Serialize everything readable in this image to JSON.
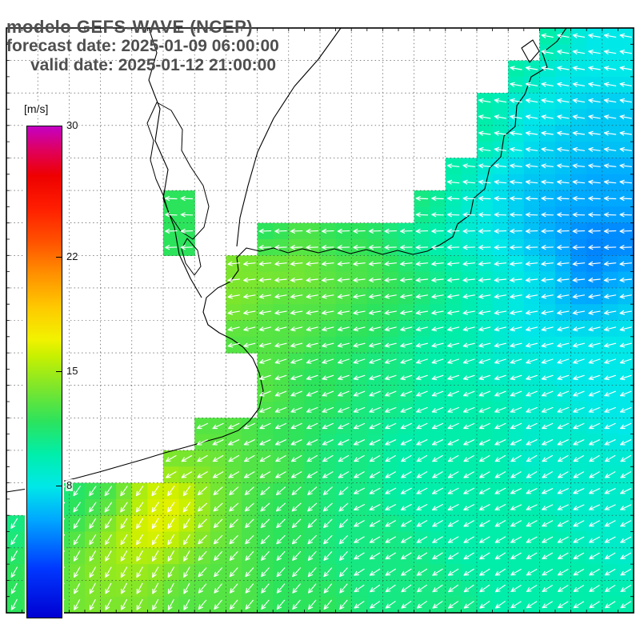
{
  "header": {
    "line1": "modelo GEFS-WAVE (NCEP)",
    "line2": "forecast date: 2025-01-09 06:00:00",
    "line3": "valid date: 2025-01-12 21:00:00"
  },
  "colorbar": {
    "unit_label": "[m/s]",
    "min": 0,
    "max": 30,
    "tick_labels": [
      30,
      22,
      15,
      8
    ],
    "stops": [
      {
        "v": 0,
        "color": "#0000d2"
      },
      {
        "v": 3,
        "color": "#0038ff"
      },
      {
        "v": 6,
        "color": "#00a8ff"
      },
      {
        "v": 8,
        "color": "#00e8e8"
      },
      {
        "v": 10,
        "color": "#00eeaa"
      },
      {
        "v": 12,
        "color": "#2ce35c"
      },
      {
        "v": 14,
        "color": "#7ce62c"
      },
      {
        "v": 16,
        "color": "#c8f000"
      },
      {
        "v": 17,
        "color": "#f2f200"
      },
      {
        "v": 19,
        "color": "#ffc800"
      },
      {
        "v": 21,
        "color": "#ff9000"
      },
      {
        "v": 23,
        "color": "#ff5000"
      },
      {
        "v": 25,
        "color": "#ff1e00"
      },
      {
        "v": 27,
        "color": "#ee0000"
      },
      {
        "v": 28.5,
        "color": "#e0005a"
      },
      {
        "v": 30,
        "color": "#c400c4"
      }
    ]
  },
  "chart_data": {
    "type": "heatmap",
    "title": "modelo GEFS-WAVE (NCEP)",
    "subtitle": [
      "forecast date: 2025-01-09 06:00:00",
      "valid date: 2025-01-12 21:00:00"
    ],
    "units": "m/s",
    "scale_range": [
      0,
      30
    ],
    "legend_position": "left",
    "grid_cols": 20,
    "grid_rows": 18,
    "values": [
      [
        null,
        null,
        null,
        null,
        null,
        null,
        null,
        null,
        null,
        null,
        null,
        null,
        null,
        null,
        null,
        null,
        null,
        10,
        8,
        8
      ],
      [
        null,
        null,
        null,
        null,
        null,
        null,
        null,
        null,
        null,
        null,
        null,
        null,
        null,
        null,
        null,
        null,
        10,
        8,
        8,
        8
      ],
      [
        null,
        null,
        null,
        null,
        null,
        null,
        null,
        null,
        null,
        null,
        null,
        null,
        null,
        null,
        null,
        10,
        8,
        8,
        7,
        7
      ],
      [
        null,
        null,
        null,
        null,
        null,
        null,
        null,
        null,
        null,
        null,
        null,
        null,
        null,
        null,
        null,
        10,
        8,
        7,
        7,
        7
      ],
      [
        null,
        null,
        null,
        null,
        null,
        null,
        null,
        null,
        null,
        null,
        null,
        null,
        null,
        null,
        10,
        8,
        7,
        7,
        6,
        6
      ],
      [
        null,
        null,
        null,
        null,
        null,
        12,
        null,
        null,
        null,
        null,
        null,
        null,
        null,
        11,
        9,
        8,
        7,
        6,
        6,
        6
      ],
      [
        null,
        null,
        null,
        null,
        null,
        12,
        null,
        null,
        12,
        13,
        12,
        12,
        11,
        10,
        9,
        8,
        7,
        6,
        5,
        5
      ],
      [
        null,
        null,
        null,
        null,
        null,
        null,
        null,
        14,
        14,
        14,
        13,
        13,
        12,
        11,
        10,
        9,
        8,
        7,
        5,
        6
      ],
      [
        null,
        null,
        null,
        null,
        null,
        null,
        null,
        14,
        13,
        13,
        13,
        12,
        12,
        11,
        10,
        9,
        8,
        7,
        6,
        7
      ],
      [
        null,
        null,
        null,
        null,
        null,
        null,
        null,
        13,
        13,
        13,
        12,
        12,
        11,
        10,
        10,
        9,
        8,
        8,
        8,
        8
      ],
      [
        null,
        null,
        null,
        null,
        null,
        null,
        null,
        null,
        13,
        12,
        12,
        11,
        11,
        10,
        10,
        9,
        9,
        8,
        8,
        8
      ],
      [
        null,
        null,
        null,
        null,
        null,
        null,
        null,
        null,
        13,
        12,
        12,
        11,
        11,
        10,
        10,
        10,
        9,
        9,
        8,
        8
      ],
      [
        null,
        null,
        null,
        null,
        null,
        null,
        13,
        13,
        12,
        12,
        11,
        11,
        10,
        10,
        10,
        10,
        9,
        9,
        9,
        8
      ],
      [
        null,
        null,
        null,
        null,
        null,
        14,
        14,
        13,
        13,
        12,
        11,
        11,
        10,
        10,
        10,
        10,
        9,
        9,
        9,
        9
      ],
      [
        null,
        11,
        12,
        13,
        16,
        17,
        14,
        13,
        12,
        12,
        11,
        11,
        10,
        10,
        10,
        10,
        10,
        9,
        9,
        9
      ],
      [
        11,
        12,
        13,
        15,
        17,
        16,
        14,
        13,
        12,
        12,
        11,
        11,
        11,
        10,
        10,
        10,
        10,
        10,
        9,
        9
      ],
      [
        12,
        13,
        14,
        15,
        15,
        14,
        13,
        13,
        12,
        12,
        11,
        11,
        11,
        11,
        10,
        10,
        10,
        10,
        10,
        9
      ],
      [
        12,
        13,
        14,
        14,
        14,
        13,
        13,
        13,
        12,
        12,
        12,
        11,
        11,
        11,
        11,
        10,
        10,
        10,
        10,
        10
      ]
    ],
    "arrow_dirs_deg": [
      190,
      190,
      190,
      188,
      186,
      182,
      178,
      174,
      170,
      166,
      162,
      158,
      155,
      150,
      [
        125,
        125,
        125,
        125,
        125,
        125,
        138,
        138,
        138,
        138,
        138,
        152,
        152,
        152,
        152,
        152,
        155,
        155,
        155,
        155
      ],
      [
        122,
        122,
        122,
        122,
        122,
        122,
        135,
        135,
        135,
        135,
        135,
        150,
        150,
        150,
        150,
        150,
        152,
        152,
        152,
        152
      ],
      [
        120,
        120,
        120,
        120,
        120,
        120,
        132,
        132,
        132,
        132,
        132,
        148,
        148,
        148,
        148,
        148,
        150,
        150,
        150,
        150
      ],
      [
        118,
        118,
        118,
        118,
        118,
        118,
        130,
        130,
        130,
        130,
        130,
        145,
        145,
        145,
        145,
        145,
        148,
        148,
        148,
        148
      ]
    ]
  },
  "map": {
    "coastline_paths": [
      "M708,35 L696,52 L678,66 L684,84 L664,96 L656,118 L646,132 L644,158 L630,170 L626,196 L612,210 L606,236 L592,248 L588,268 L572,280 L566,296 L550,306 L534,314 L516,318 L497,313 L478,318 L458,312 L438,317 L418,311 L398,316 L378,311 L360,316 L342,310 L325,314 L308,310 L296,322 L298,338 L288,352 L272,360 L258,372 L254,390 L260,406 L274,416 L290,424 L304,434 L316,448 L324,466 L329,488 L324,510 L312,526 L298,538 L278,546 L256,552 L232,559 L206,566 L180,574 L152,582 L124,590 L94,598 L64,605 L34,611 L8,615",
      "M186,35 L196,66 L186,100 L200,136 L194,176 L210,212 L204,248 L218,284 L224,318 L238,348 L252,372",
      "M426,35 L398,74 L368,108 L342,148 L322,190 L310,232 L300,272 L296,308",
      "M652,60 L666,50 L674,64 L662,78 Z"
    ],
    "lake_paths": [
      "M196,128 L214,138 L228,162 L227,188 L238,208 L254,232 L261,258 L255,284 L241,299 L226,289 L211,267 L204,244 L195,224 L188,200 L192,176 L184,154 Z",
      "M234,298 L247,313 L251,333 L243,344 L232,329 L227,311 Z"
    ]
  }
}
